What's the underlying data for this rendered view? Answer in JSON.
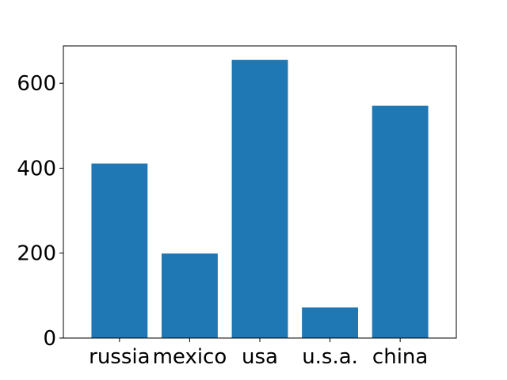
{
  "chart_data": {
    "type": "bar",
    "categories": [
      "russia",
      "mexico",
      "usa",
      "u.s.a.",
      "china"
    ],
    "values": [
      411,
      199,
      655,
      72,
      547
    ],
    "yticks": [
      0,
      200,
      400,
      600
    ],
    "ylim": [
      0,
      688
    ],
    "grid": false,
    "bar_color": "#1f77b4"
  }
}
